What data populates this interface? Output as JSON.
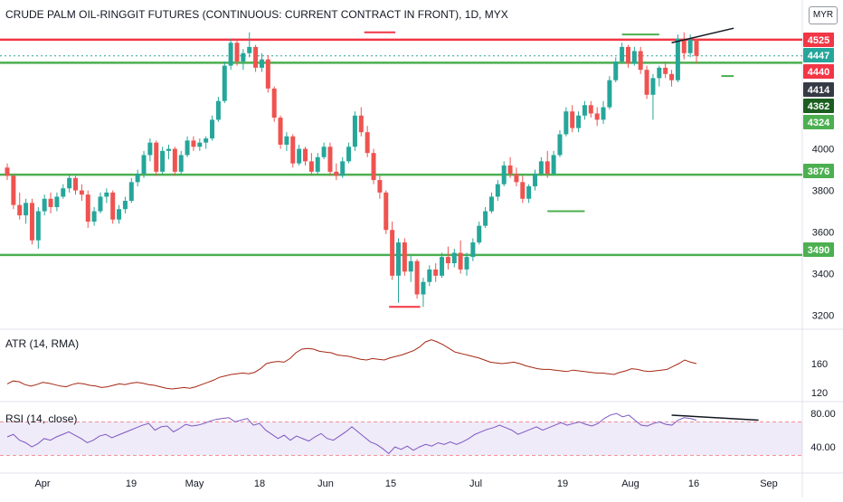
{
  "header": {
    "title": "CRUDE PALM OIL-RINGGIT FUTURES (CONTINUOUS: CURRENT CONTRACT IN FRONT), 1D, MYX",
    "currency": "MYR"
  },
  "indicators": {
    "atr_label": "ATR (14, RMA)",
    "rsi_label": "RSI (14, close)"
  },
  "chart_data": [
    {
      "type": "candlestick",
      "title": "CRUDE PALM OIL-RINGGIT FUTURES (CONTINUOUS: CURRENT CONTRACT IN FRONT), 1D, MYX",
      "ylim": [
        3150,
        4620
      ],
      "y_ticks": [
        3200,
        3400,
        3600,
        3800,
        4000
      ],
      "x_ticks": [
        "Apr",
        "19",
        "May",
        "18",
        "Jun",
        "15",
        "Jul",
        "19",
        "Aug",
        "16",
        "Sep"
      ],
      "price_badges": [
        {
          "value": "4525",
          "color": "#f23645"
        },
        {
          "value": "4447",
          "color": "#26a69a"
        },
        {
          "value": "4440",
          "color": "#f23645"
        },
        {
          "value": "4414",
          "color": "#363a45"
        },
        {
          "value": "4362",
          "color": "#1b5e20"
        },
        {
          "value": "4324",
          "color": "#4caf50"
        },
        {
          "value": "3876",
          "color": "#4caf50"
        },
        {
          "value": "3490",
          "color": "#4caf50"
        }
      ],
      "horizontal_levels": [
        {
          "value": 4525,
          "color": "#f23645"
        },
        {
          "value": 4414,
          "color": "#4caf50"
        },
        {
          "value": 3876,
          "color": "#4caf50"
        },
        {
          "value": 3490,
          "color": "#4caf50"
        }
      ],
      "candles": [
        [
          3910,
          3930,
          3850,
          3870
        ],
        [
          3870,
          3880,
          3710,
          3730
        ],
        [
          3730,
          3790,
          3660,
          3680
        ],
        [
          3680,
          3760,
          3640,
          3740
        ],
        [
          3740,
          3760,
          3540,
          3560
        ],
        [
          3560,
          3720,
          3520,
          3700
        ],
        [
          3700,
          3780,
          3680,
          3760
        ],
        [
          3760,
          3790,
          3690,
          3720
        ],
        [
          3720,
          3790,
          3700,
          3770
        ],
        [
          3770,
          3830,
          3760,
          3810
        ],
        [
          3810,
          3880,
          3790,
          3860
        ],
        [
          3860,
          3870,
          3780,
          3800
        ],
        [
          3800,
          3830,
          3750,
          3780
        ],
        [
          3780,
          3800,
          3620,
          3650
        ],
        [
          3650,
          3720,
          3630,
          3700
        ],
        [
          3700,
          3790,
          3690,
          3770
        ],
        [
          3770,
          3810,
          3740,
          3790
        ],
        [
          3790,
          3800,
          3640,
          3660
        ],
        [
          3660,
          3730,
          3640,
          3710
        ],
        [
          3710,
          3770,
          3690,
          3750
        ],
        [
          3750,
          3860,
          3740,
          3840
        ],
        [
          3840,
          3900,
          3820,
          3880
        ],
        [
          3880,
          3990,
          3860,
          3970
        ],
        [
          3970,
          4050,
          3940,
          4030
        ],
        [
          4030,
          4040,
          3870,
          3890
        ],
        [
          3890,
          4010,
          3880,
          3990
        ],
        [
          3990,
          4020,
          3950,
          4000
        ],
        [
          4000,
          4010,
          3870,
          3890
        ],
        [
          3890,
          3990,
          3880,
          3970
        ],
        [
          3970,
          4060,
          3960,
          4040
        ],
        [
          4040,
          4060,
          3990,
          4010
        ],
        [
          4010,
          4050,
          3990,
          4030
        ],
        [
          4030,
          4060,
          4000,
          4050
        ],
        [
          4050,
          4160,
          4040,
          4140
        ],
        [
          4140,
          4250,
          4130,
          4230
        ],
        [
          4230,
          4420,
          4220,
          4400
        ],
        [
          4400,
          4530,
          4380,
          4510
        ],
        [
          4510,
          4530,
          4400,
          4420
        ],
        [
          4420,
          4480,
          4380,
          4460
        ],
        [
          4460,
          4560,
          4440,
          4490
        ],
        [
          4490,
          4500,
          4370,
          4390
        ],
        [
          4390,
          4460,
          4370,
          4430
        ],
        [
          4430,
          4450,
          4270,
          4290
        ],
        [
          4290,
          4300,
          4130,
          4150
        ],
        [
          4150,
          4160,
          4000,
          4020
        ],
        [
          4020,
          4080,
          3990,
          4060
        ],
        [
          4060,
          4070,
          3910,
          3930
        ],
        [
          3930,
          4020,
          3920,
          4000
        ],
        [
          4000,
          4010,
          3920,
          3940
        ],
        [
          3940,
          3980,
          3870,
          3890
        ],
        [
          3890,
          3980,
          3880,
          3960
        ],
        [
          3960,
          4030,
          3950,
          4010
        ],
        [
          4010,
          4030,
          3870,
          3890
        ],
        [
          3890,
          3930,
          3850,
          3870
        ],
        [
          3870,
          3960,
          3860,
          3940
        ],
        [
          3940,
          4030,
          3930,
          4010
        ],
        [
          4010,
          4180,
          3990,
          4160
        ],
        [
          4160,
          4200,
          4060,
          4080
        ],
        [
          4080,
          4110,
          3960,
          3980
        ],
        [
          3980,
          4000,
          3830,
          3850
        ],
        [
          3850,
          3870,
          3760,
          3790
        ],
        [
          3790,
          3800,
          3590,
          3610
        ],
        [
          3610,
          3650,
          3370,
          3390
        ],
        [
          3390,
          3570,
          3260,
          3550
        ],
        [
          3550,
          3570,
          3390,
          3410
        ],
        [
          3410,
          3490,
          3360,
          3460
        ],
        [
          3460,
          3470,
          3280,
          3300
        ],
        [
          3300,
          3380,
          3240,
          3360
        ],
        [
          3360,
          3440,
          3340,
          3420
        ],
        [
          3420,
          3450,
          3360,
          3390
        ],
        [
          3390,
          3500,
          3380,
          3480
        ],
        [
          3480,
          3530,
          3420,
          3450
        ],
        [
          3450,
          3520,
          3430,
          3500
        ],
        [
          3500,
          3560,
          3400,
          3420
        ],
        [
          3420,
          3500,
          3390,
          3480
        ],
        [
          3480,
          3570,
          3460,
          3550
        ],
        [
          3550,
          3650,
          3540,
          3630
        ],
        [
          3630,
          3720,
          3620,
          3700
        ],
        [
          3700,
          3790,
          3690,
          3770
        ],
        [
          3770,
          3850,
          3750,
          3830
        ],
        [
          3830,
          3940,
          3820,
          3920
        ],
        [
          3920,
          3960,
          3860,
          3880
        ],
        [
          3880,
          3910,
          3820,
          3840
        ],
        [
          3840,
          3870,
          3740,
          3760
        ],
        [
          3760,
          3830,
          3740,
          3820
        ],
        [
          3820,
          3900,
          3800,
          3880
        ],
        [
          3880,
          3960,
          3870,
          3940
        ],
        [
          3940,
          3990,
          3860,
          3880
        ],
        [
          3880,
          3990,
          3870,
          3970
        ],
        [
          3970,
          4090,
          3960,
          4070
        ],
        [
          4070,
          4200,
          4060,
          4180
        ],
        [
          4180,
          4210,
          4080,
          4100
        ],
        [
          4100,
          4180,
          4080,
          4160
        ],
        [
          4160,
          4230,
          4140,
          4210
        ],
        [
          4210,
          4230,
          4150,
          4170
        ],
        [
          4170,
          4200,
          4110,
          4140
        ],
        [
          4140,
          4230,
          4120,
          4200
        ],
        [
          4200,
          4350,
          4190,
          4330
        ],
        [
          4330,
          4440,
          4320,
          4420
        ],
        [
          4420,
          4510,
          4410,
          4490
        ],
        [
          4490,
          4500,
          4390,
          4410
        ],
        [
          4410,
          4490,
          4400,
          4470
        ],
        [
          4470,
          4490,
          4360,
          4380
        ],
        [
          4380,
          4400,
          4240,
          4260
        ],
        [
          4260,
          4360,
          4140,
          4340
        ],
        [
          4340,
          4400,
          4300,
          4390
        ],
        [
          4390,
          4420,
          4340,
          4360
        ],
        [
          4360,
          4380,
          4300,
          4330
        ],
        [
          4330,
          4550,
          4320,
          4530
        ],
        [
          4530,
          4560,
          4430,
          4460
        ],
        [
          4460,
          4550,
          4440,
          4525
        ],
        [
          4525,
          4530,
          4410,
          4447
        ]
      ]
    },
    {
      "type": "line",
      "title": "ATR (14, RMA)",
      "ylim": [
        110,
        205
      ],
      "y_ticks": [
        120,
        160
      ],
      "series": [
        {
          "values": [
            132,
            136,
            135,
            131,
            129,
            131,
            134,
            133,
            131,
            129,
            128,
            131,
            133,
            132,
            130,
            129,
            127,
            128,
            130,
            132,
            131,
            133,
            134,
            133,
            131,
            130,
            128,
            126,
            125,
            126,
            127,
            126,
            128,
            131,
            134,
            137,
            141,
            143,
            145,
            146,
            147,
            146,
            148,
            153,
            160,
            162,
            163,
            162,
            167,
            175,
            180,
            181,
            180,
            177,
            176,
            175,
            172,
            171,
            170,
            168,
            166,
            165,
            167,
            166,
            165,
            168,
            170,
            172,
            175,
            178,
            183,
            190,
            193,
            190,
            186,
            181,
            176,
            174,
            172,
            170,
            168,
            165,
            162,
            161,
            160,
            161,
            162,
            160,
            157,
            155,
            153,
            152,
            152,
            151,
            150,
            149,
            151,
            150,
            149,
            148,
            147,
            147,
            146,
            145,
            148,
            150,
            153,
            152,
            150,
            149,
            150,
            151,
            152,
            156,
            160,
            165,
            162,
            160
          ]
        }
      ]
    },
    {
      "type": "line",
      "title": "RSI (14, close)",
      "ylim": [
        12,
        92
      ],
      "y_ticks": [
        40,
        80
      ],
      "levels": [
        70,
        30
      ],
      "series": [
        {
          "values": [
            52,
            55,
            48,
            45,
            40,
            44,
            50,
            48,
            52,
            55,
            58,
            54,
            50,
            45,
            48,
            53,
            55,
            51,
            54,
            57,
            60,
            63,
            66,
            68,
            60,
            64,
            65,
            58,
            62,
            67,
            65,
            66,
            68,
            71,
            73,
            74,
            75,
            70,
            72,
            74,
            66,
            68,
            60,
            55,
            50,
            54,
            48,
            53,
            50,
            47,
            52,
            56,
            50,
            48,
            53,
            58,
            64,
            58,
            52,
            46,
            43,
            38,
            32,
            40,
            37,
            41,
            36,
            40,
            43,
            41,
            45,
            43,
            46,
            43,
            46,
            50,
            55,
            58,
            61,
            63,
            66,
            63,
            60,
            55,
            58,
            61,
            64,
            60,
            63,
            66,
            69,
            66,
            68,
            70,
            67,
            65,
            68,
            74,
            78,
            80,
            76,
            78,
            72,
            66,
            65,
            68,
            70,
            67,
            66,
            72,
            75,
            74,
            72
          ]
        }
      ]
    }
  ]
}
